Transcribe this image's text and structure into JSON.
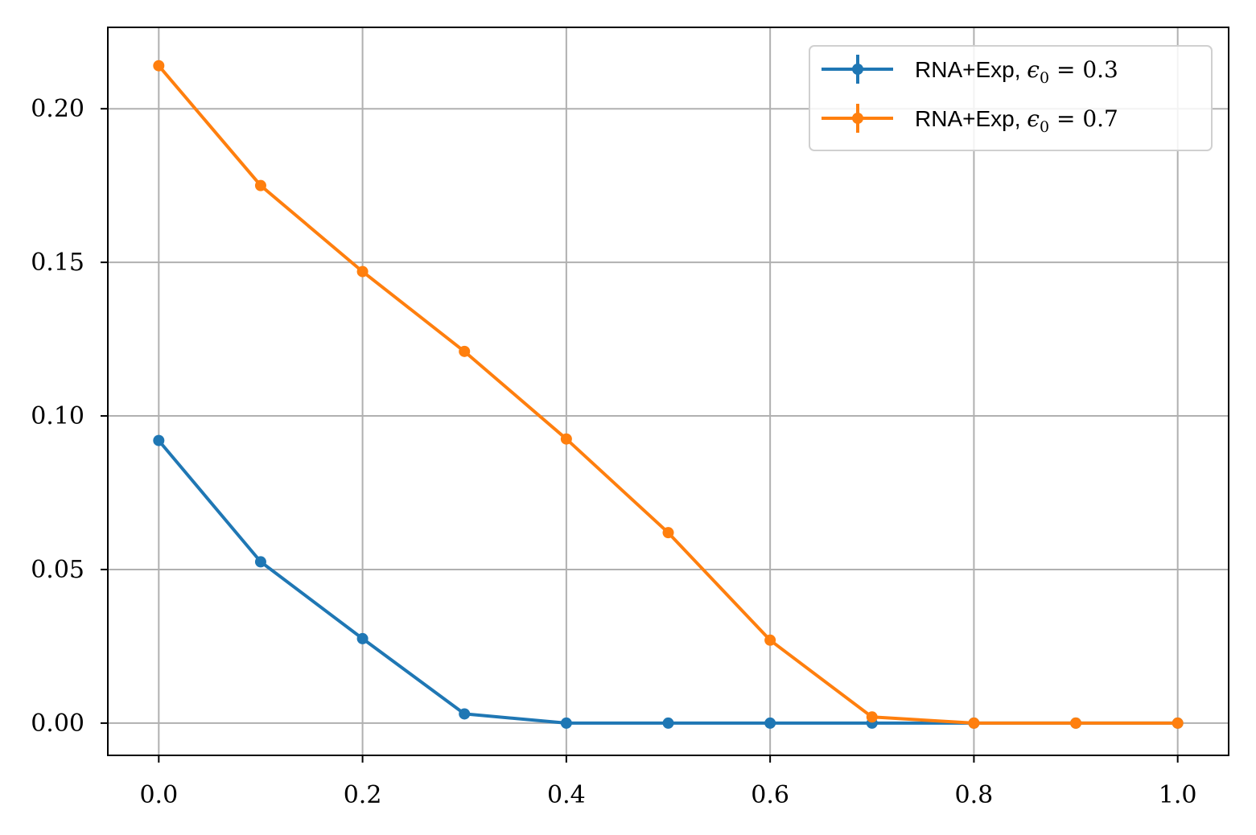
{
  "chart_data": {
    "type": "line",
    "title": "",
    "xlabel": "",
    "ylabel": "",
    "xlim": [
      -0.05,
      1.05
    ],
    "ylim": [
      -0.0105,
      0.2265
    ],
    "grid": true,
    "legend_position": "top-right",
    "x_ticks": [
      "0.0",
      "0.2",
      "0.4",
      "0.6",
      "0.8",
      "1.0"
    ],
    "x_tick_values": [
      0.0,
      0.2,
      0.4,
      0.6,
      0.8,
      1.0
    ],
    "y_ticks": [
      "0.00",
      "0.05",
      "0.10",
      "0.15",
      "0.20"
    ],
    "y_tick_values": [
      0.0,
      0.05,
      0.1,
      0.15,
      0.2
    ],
    "x": [
      0.0,
      0.1,
      0.2,
      0.3,
      0.4,
      0.5,
      0.6,
      0.7,
      0.8,
      0.9,
      1.0
    ],
    "series": [
      {
        "name_text": "RNA+Exp, ",
        "name_eps": "ϵ",
        "name_sub": "0",
        "name_eq": " = 0.3",
        "color": "#1f77b4",
        "values": [
          0.092,
          0.0525,
          0.0275,
          0.003,
          0.0,
          0.0,
          0.0,
          0.0,
          0.0,
          0.0,
          0.0
        ]
      },
      {
        "name_text": "RNA+Exp, ",
        "name_eps": "ϵ",
        "name_sub": "0",
        "name_eq": " = 0.7",
        "color": "#ff7f0e",
        "values": [
          0.214,
          0.175,
          0.147,
          0.121,
          0.0925,
          0.062,
          0.027,
          0.002,
          0.0,
          0.0,
          0.0
        ]
      }
    ]
  }
}
